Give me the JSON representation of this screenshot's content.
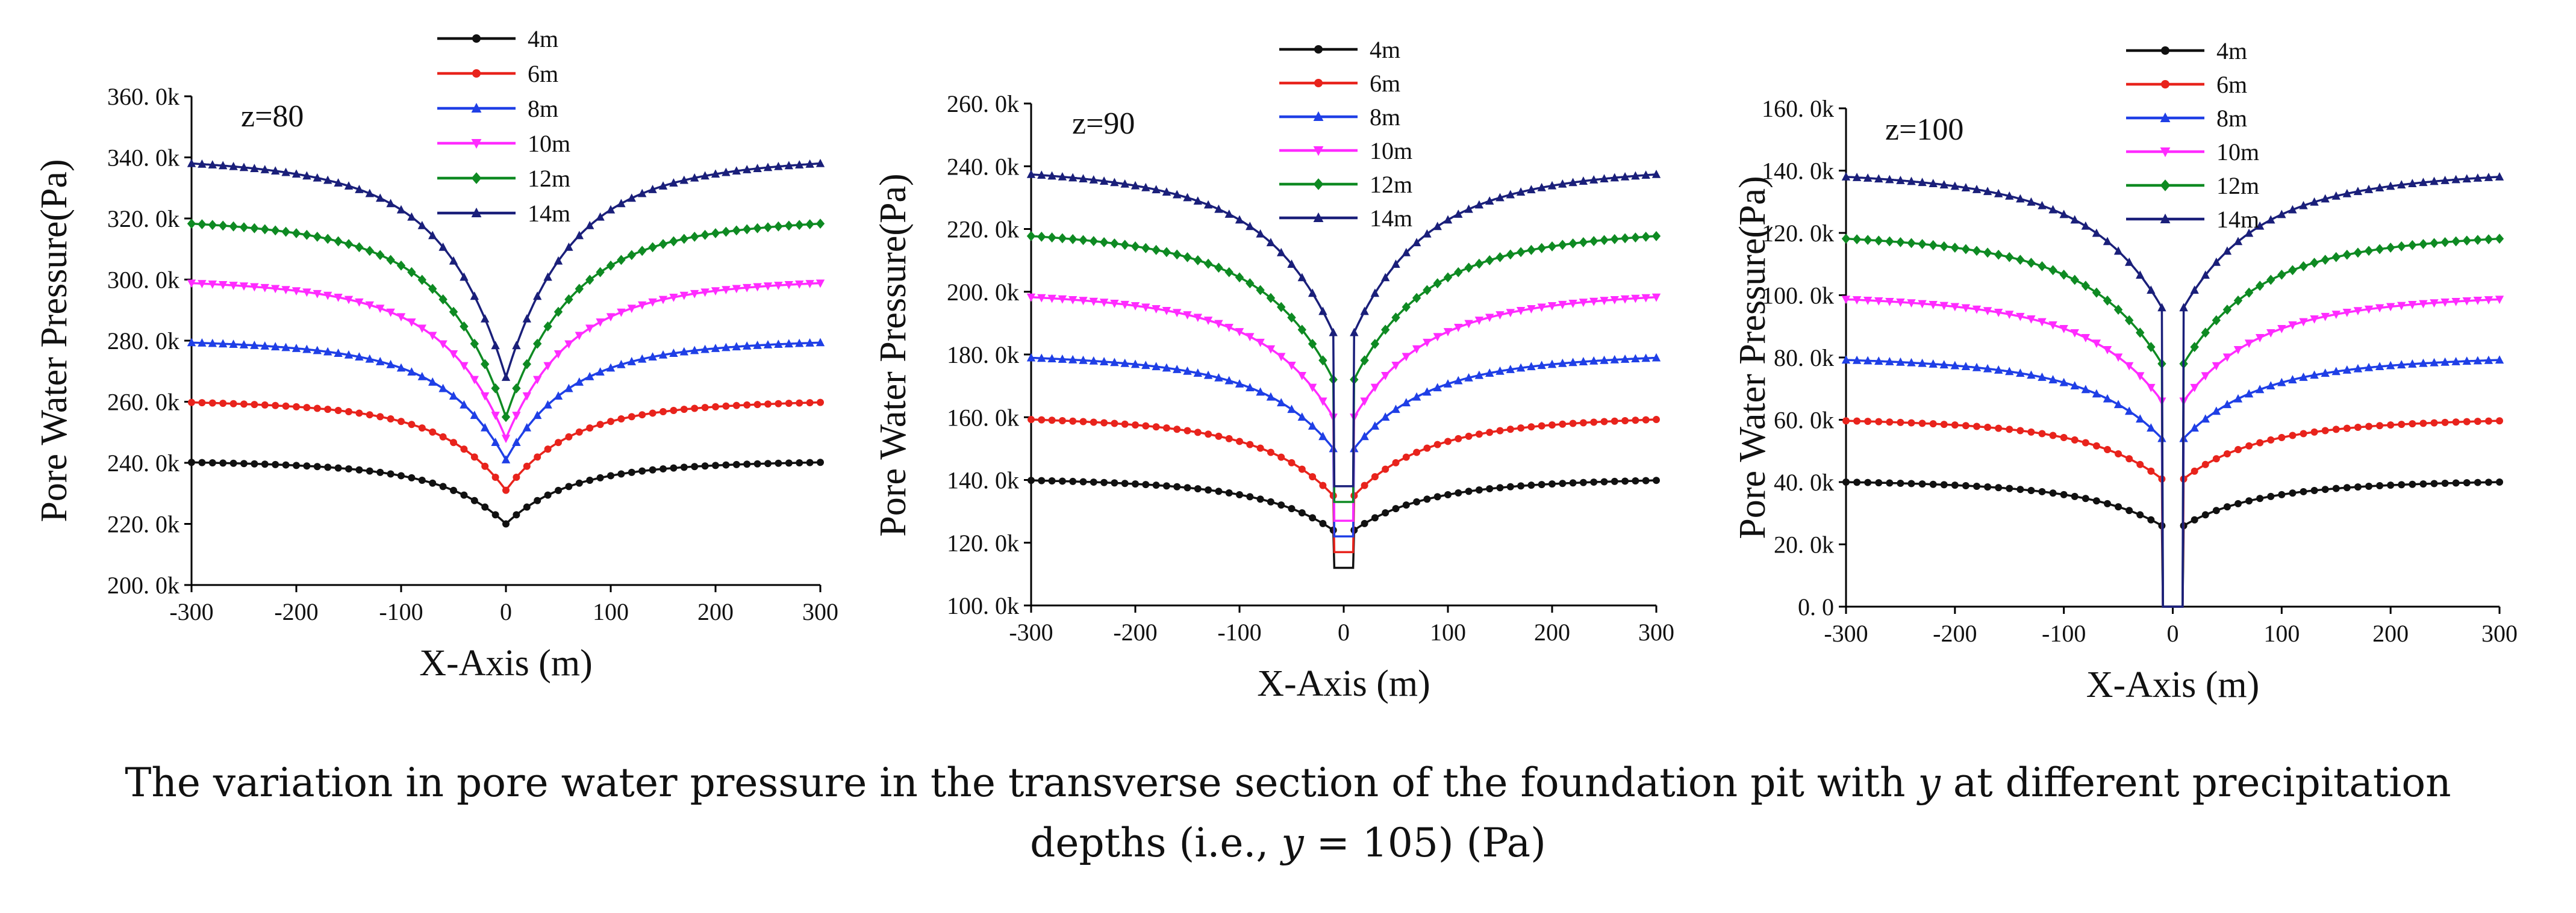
{
  "caption": {
    "line1_pre": "The variation in pore water pressure in the transverse section of the foundation pit with ",
    "line1_var": "y",
    "line1_post": " at different precipitation",
    "line2_pre": "depths (i.e., ",
    "line2_var": "y",
    "line2_post": " = 105) (Pa)"
  },
  "series_colors": {
    "4m": "#111111",
    "6m": "#e8231c",
    "8m": "#1f3fe6",
    "10m": "#ff2bff",
    "12m": "#0e8a22",
    "14m": "#1a1f7a"
  },
  "chart_data": [
    {
      "type": "line",
      "panel_label": "z=80",
      "xlabel": "X-Axis (m)",
      "ylabel": "Pore Water Pressure(Pa)",
      "xlim": [
        -300,
        300
      ],
      "ylim": [
        200000,
        360000
      ],
      "xticks": [
        -300,
        -200,
        -100,
        0,
        100,
        200,
        300
      ],
      "yticks": [
        200000,
        220000,
        240000,
        260000,
        280000,
        300000,
        320000,
        340000,
        360000
      ],
      "ytick_labels": [
        "200. 0k",
        "220. 0k",
        "240. 0k",
        "260. 0k",
        "280. 0k",
        "300. 0k",
        "320. 0k",
        "340. 0k",
        "360. 0k"
      ],
      "legend": [
        "4m",
        "6m",
        "8m",
        "10m",
        "12m",
        "14m"
      ],
      "series": [
        {
          "name": "4m",
          "edge": 241000,
          "center": 220000
        },
        {
          "name": "6m",
          "edge": 261000,
          "center": 231000
        },
        {
          "name": "8m",
          "edge": 281000,
          "center": 241000
        },
        {
          "name": "10m",
          "edge": 301000,
          "center": 248000
        },
        {
          "name": "12m",
          "edge": 321000,
          "center": 255000
        },
        {
          "name": "14m",
          "edge": 341000,
          "center": 268000
        }
      ]
    },
    {
      "type": "line",
      "panel_label": "z=90",
      "xlabel": "X-Axis (m)",
      "ylabel": "Pore Water Pressure(Pa)",
      "xlim": [
        -300,
        300
      ],
      "ylim": [
        100000,
        260000
      ],
      "xticks": [
        -300,
        -200,
        -100,
        0,
        100,
        200,
        300
      ],
      "yticks": [
        100000,
        120000,
        140000,
        160000,
        180000,
        200000,
        220000,
        240000,
        260000
      ],
      "ytick_labels": [
        "100. 0k",
        "120. 0k",
        "140. 0k",
        "160. 0k",
        "180. 0k",
        "200. 0k",
        "220. 0k",
        "240. 0k",
        "260. 0k"
      ],
      "legend": [
        "4m",
        "6m",
        "8m",
        "10m",
        "12m",
        "14m"
      ],
      "series": [
        {
          "name": "4m",
          "edge": 141000,
          "center": 124000,
          "pit": 112000
        },
        {
          "name": "6m",
          "edge": 161000,
          "center": 135000,
          "pit": 117000
        },
        {
          "name": "8m",
          "edge": 181000,
          "center": 150000,
          "pit": 122000
        },
        {
          "name": "10m",
          "edge": 201000,
          "center": 160000,
          "pit": 127000
        },
        {
          "name": "12m",
          "edge": 221000,
          "center": 172000,
          "pit": 133000
        },
        {
          "name": "14m",
          "edge": 241000,
          "center": 187000,
          "pit": 138000
        }
      ]
    },
    {
      "type": "line",
      "panel_label": "z=100",
      "xlabel": "X-Axis (m)",
      "ylabel": "Pore Water Pressure(Pa)",
      "xlim": [
        -300,
        300
      ],
      "ylim": [
        0,
        160000
      ],
      "xticks": [
        -300,
        -200,
        -100,
        0,
        100,
        200,
        300
      ],
      "yticks": [
        0,
        20000,
        40000,
        60000,
        80000,
        100000,
        120000,
        140000,
        160000
      ],
      "ytick_labels": [
        "0. 0",
        "20. 0k",
        "40. 0k",
        "60. 0k",
        "80. 0k",
        "100. 0k",
        "120. 0k",
        "140. 0k",
        "160. 0k"
      ],
      "legend": [
        "4m",
        "6m",
        "8m",
        "10m",
        "12m",
        "14m"
      ],
      "series": [
        {
          "name": "4m",
          "edge": 41000,
          "center": 26000,
          "pit": 0
        },
        {
          "name": "6m",
          "edge": 61000,
          "center": 41000,
          "pit": 0
        },
        {
          "name": "8m",
          "edge": 81000,
          "center": 54000,
          "pit": 0
        },
        {
          "name": "10m",
          "edge": 101000,
          "center": 66000,
          "pit": 0
        },
        {
          "name": "12m",
          "edge": 121000,
          "center": 78000,
          "pit": 0
        },
        {
          "name": "14m",
          "edge": 141000,
          "center": 96000,
          "pit": 0
        }
      ]
    }
  ]
}
